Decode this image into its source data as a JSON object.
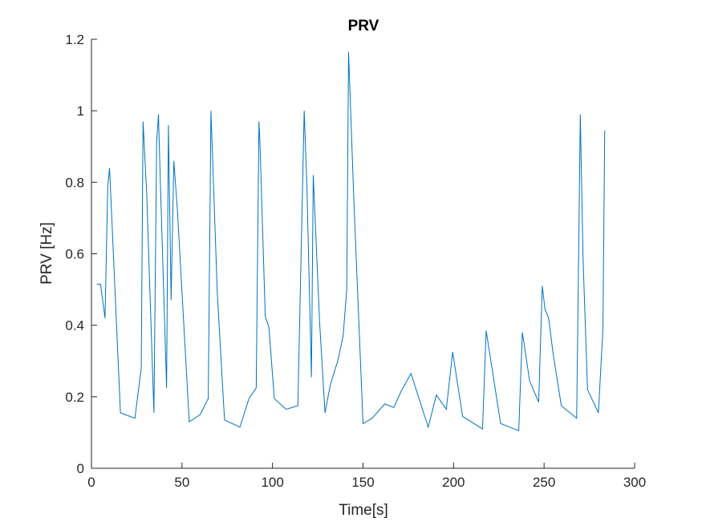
{
  "chart_data": {
    "type": "line",
    "title": "PRV",
    "xlabel": "Time[s]",
    "ylabel": "PRV [Hz]",
    "xlim": [
      0,
      300
    ],
    "ylim": [
      0,
      1.2
    ],
    "xticks": [
      0,
      50,
      100,
      150,
      200,
      250,
      300
    ],
    "yticks": [
      0,
      0.2,
      0.4,
      0.6,
      0.8,
      1,
      1.2
    ],
    "xtick_labels": [
      "0",
      "50",
      "100",
      "150",
      "200",
      "250",
      "300"
    ],
    "ytick_labels": [
      "0",
      "0.2",
      "0.4",
      "0.6",
      "0.8",
      "1",
      "1.2"
    ],
    "grid": false,
    "line_color": "#0072BD",
    "axis_color": "#262626",
    "series": [
      {
        "x": [
          3,
          5,
          7.5,
          9,
          10,
          16,
          24,
          27.5,
          28.5,
          30.5,
          34.5,
          36,
          37,
          38,
          41.5,
          42.5,
          44,
          45.5,
          47.5,
          54,
          60,
          64.5,
          66,
          69.5,
          73.5,
          82,
          87,
          91,
          92.5,
          93,
          96,
          98,
          101,
          107.5,
          114,
          117.5,
          119,
          121.5,
          122.5,
          126,
          129,
          132,
          136,
          139,
          141,
          142,
          145,
          150,
          155,
          162,
          167,
          171,
          176.5,
          186,
          190.5,
          196,
          199.5,
          205,
          216,
          218,
          226,
          236,
          238,
          242,
          247,
          249,
          250.5,
          252.5,
          255,
          259.5,
          268,
          270,
          271.5,
          274,
          280,
          282.5,
          283.5
        ],
        "y": [
          0.515,
          0.515,
          0.42,
          0.79,
          0.84,
          0.155,
          0.14,
          0.28,
          0.97,
          0.77,
          0.155,
          0.91,
          0.99,
          0.81,
          0.225,
          0.96,
          0.47,
          0.86,
          0.72,
          0.13,
          0.15,
          0.195,
          1.0,
          0.49,
          0.135,
          0.115,
          0.195,
          0.225,
          0.97,
          0.92,
          0.425,
          0.395,
          0.195,
          0.165,
          0.175,
          1.0,
          0.79,
          0.255,
          0.82,
          0.41,
          0.155,
          0.235,
          0.3,
          0.37,
          0.5,
          1.165,
          0.74,
          0.125,
          0.14,
          0.18,
          0.17,
          0.215,
          0.265,
          0.115,
          0.205,
          0.165,
          0.325,
          0.145,
          0.11,
          0.385,
          0.125,
          0.105,
          0.38,
          0.245,
          0.185,
          0.51,
          0.445,
          0.42,
          0.32,
          0.175,
          0.14,
          0.99,
          0.59,
          0.22,
          0.155,
          0.39,
          0.945
        ]
      }
    ]
  }
}
